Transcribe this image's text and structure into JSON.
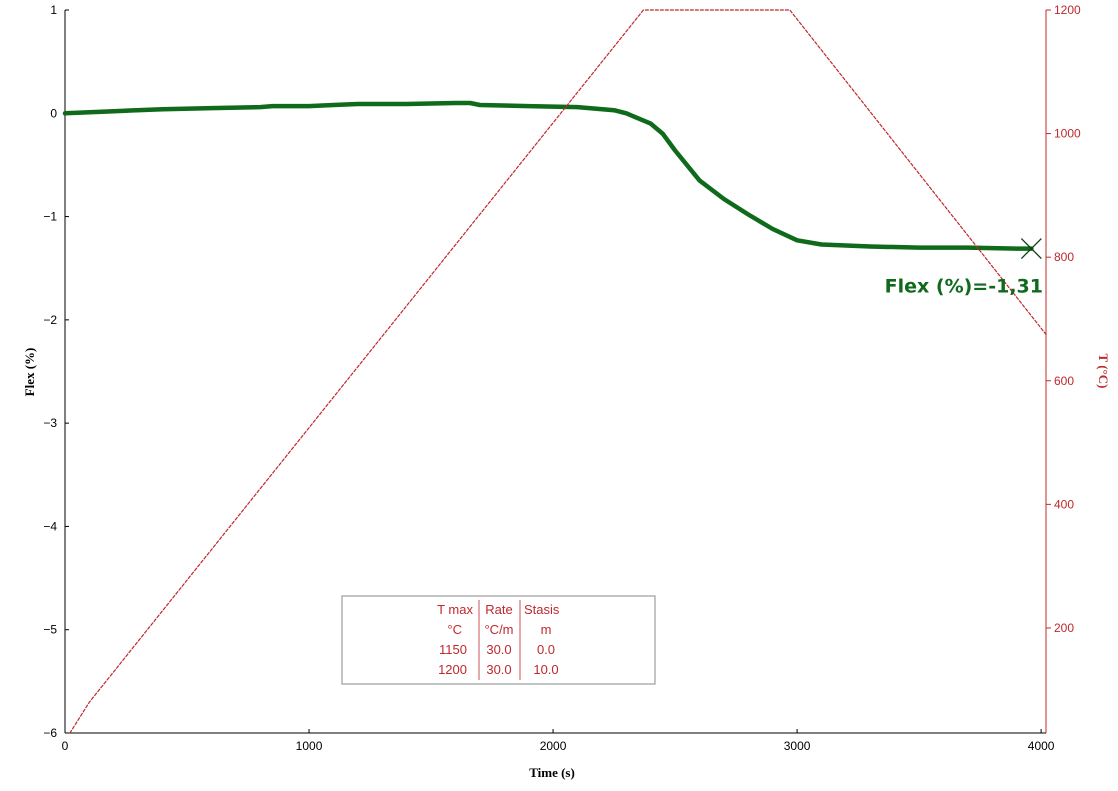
{
  "chart_data": {
    "type": "line",
    "xlabel": "Time (s)",
    "ylabel": "Flex (%)",
    "y2label": "T (°C)",
    "xlim": [
      0,
      4020
    ],
    "ylim": [
      -6,
      1
    ],
    "y2lim": [
      30,
      1200
    ],
    "x_ticks": [
      "0",
      "1000",
      "2000",
      "3000",
      "4000"
    ],
    "y_ticks": [
      "1",
      "0",
      "−1",
      "−2",
      "−3",
      "−4",
      "−5",
      "−6"
    ],
    "y2_ticks": [
      "1200",
      "1000",
      "800",
      "600",
      "400",
      "200"
    ],
    "grid": false,
    "series": [
      {
        "axis": "left",
        "color": "#0f6a1c",
        "style": "solid",
        "x": [
          0,
          200,
          400,
          600,
          800,
          850,
          1000,
          1100,
          1200,
          1400,
          1600,
          1660,
          1700,
          1900,
          2100,
          2250,
          2300,
          2340,
          2400,
          2450,
          2500,
          2600,
          2700,
          2800,
          2900,
          3000,
          3100,
          3300,
          3500,
          3700,
          3900,
          3960
        ],
        "y": [
          0.0,
          0.02,
          0.04,
          0.05,
          0.06,
          0.07,
          0.07,
          0.08,
          0.09,
          0.09,
          0.1,
          0.1,
          0.08,
          0.07,
          0.06,
          0.03,
          0.0,
          -0.04,
          -0.1,
          -0.2,
          -0.36,
          -0.65,
          -0.83,
          -0.98,
          -1.12,
          -1.23,
          -1.27,
          -1.29,
          -1.3,
          -1.3,
          -1.31,
          -1.31
        ]
      },
      {
        "axis": "right",
        "color": "#c0282d",
        "style": "dashed",
        "x": [
          20,
          100,
          2370,
          2970,
          4020
        ],
        "y": [
          30,
          80,
          1200,
          1200,
          675
        ]
      }
    ],
    "annotation": {
      "label": "Flex (%)=-1,31",
      "x": 3960,
      "y": -1.31,
      "marker": "x"
    },
    "table": {
      "header": [
        "T max",
        "Rate",
        "Stasis"
      ],
      "units": [
        "°C",
        "°C/m",
        "m"
      ],
      "rows": [
        [
          "1150",
          "30.0",
          "0.0"
        ],
        [
          "1200",
          "30.0",
          "10.0"
        ]
      ]
    }
  }
}
